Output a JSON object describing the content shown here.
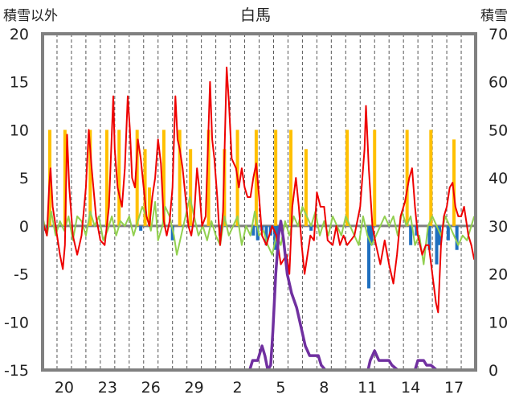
{
  "chart_data": {
    "type": "line",
    "title": "白馬",
    "left_axis_label": "積雪以外",
    "right_axis_label": "積雪",
    "left_ylim": [
      -15,
      20
    ],
    "left_ticks": [
      20,
      15,
      10,
      5,
      0,
      -5,
      -10,
      -15
    ],
    "right_ylim": [
      0,
      70
    ],
    "right_ticks": [
      70,
      60,
      50,
      40,
      30,
      20,
      10,
      0
    ],
    "x_tick_labels": [
      "20",
      "23",
      "26",
      "29",
      "2",
      "5",
      "8",
      "11",
      "14",
      "17"
    ],
    "x_tick_days": [
      1.5,
      4.5,
      7.5,
      10.5,
      13.5,
      16.5,
      19.5,
      22.5,
      25.5,
      28.5
    ],
    "x_range_days": [
      0,
      30
    ],
    "grid": "vertical dashed, one per day",
    "legend": "none",
    "colors": {
      "temperature": "#ee0000",
      "temperature_change": "#92d050",
      "precipitation": "#ffc000",
      "snowfall": "#1f6fbf",
      "snow_depth": "#7030a0",
      "zero_line": "#7f7f7f",
      "frame": "#808080",
      "grid": "#555555"
    },
    "series": [
      {
        "key": "temperature",
        "axis": "left",
        "points": [
          [
            0,
            0.5
          ],
          [
            0.3,
            -1
          ],
          [
            0.45,
            4
          ],
          [
            0.55,
            6
          ],
          [
            0.7,
            2
          ],
          [
            1.0,
            -1
          ],
          [
            1.2,
            -3
          ],
          [
            1.4,
            -4.5
          ],
          [
            1.55,
            -2
          ],
          [
            1.7,
            9.5
          ],
          [
            1.85,
            4
          ],
          [
            2.1,
            -1
          ],
          [
            2.4,
            -3
          ],
          [
            2.7,
            -1
          ],
          [
            3.0,
            4
          ],
          [
            3.2,
            10
          ],
          [
            3.4,
            6
          ],
          [
            3.7,
            1
          ],
          [
            4.0,
            -1.5
          ],
          [
            4.3,
            -2
          ],
          [
            4.6,
            2
          ],
          [
            4.9,
            13.5
          ],
          [
            5.0,
            8
          ],
          [
            5.2,
            4
          ],
          [
            5.5,
            2
          ],
          [
            5.7,
            6
          ],
          [
            5.9,
            13.5
          ],
          [
            6.05,
            10
          ],
          [
            6.2,
            5
          ],
          [
            6.4,
            4
          ],
          [
            6.6,
            9
          ],
          [
            6.8,
            7
          ],
          [
            7.0,
            4
          ],
          [
            7.2,
            1
          ],
          [
            7.4,
            0
          ],
          [
            7.6,
            3
          ],
          [
            7.8,
            5
          ],
          [
            8.0,
            9
          ],
          [
            8.2,
            6.5
          ],
          [
            8.4,
            0.5
          ],
          [
            8.6,
            -1
          ],
          [
            8.8,
            0.5
          ],
          [
            9.0,
            4
          ],
          [
            9.2,
            13.5
          ],
          [
            9.35,
            9
          ],
          [
            9.5,
            8
          ],
          [
            9.7,
            6
          ],
          [
            9.9,
            3
          ],
          [
            10.1,
            0
          ],
          [
            10.3,
            -1
          ],
          [
            10.5,
            1
          ],
          [
            10.7,
            6
          ],
          [
            10.85,
            4
          ],
          [
            11.05,
            0
          ],
          [
            11.3,
            1
          ],
          [
            11.6,
            15
          ],
          [
            11.75,
            9
          ],
          [
            11.9,
            7
          ],
          [
            12.1,
            3
          ],
          [
            12.3,
            -2
          ],
          [
            12.5,
            1.5
          ],
          [
            12.75,
            16.5
          ],
          [
            12.9,
            13
          ],
          [
            13.1,
            7
          ],
          [
            13.4,
            6
          ],
          [
            13.6,
            4
          ],
          [
            13.8,
            6
          ],
          [
            14.0,
            4
          ],
          [
            14.2,
            3
          ],
          [
            14.4,
            3
          ],
          [
            14.6,
            5
          ],
          [
            14.8,
            6.5
          ],
          [
            15.0,
            3
          ],
          [
            15.2,
            -1
          ],
          [
            15.5,
            -2
          ],
          [
            15.9,
            0
          ],
          [
            16.2,
            -1
          ],
          [
            16.5,
            -4
          ],
          [
            16.9,
            -3
          ],
          [
            17.1,
            -5
          ],
          [
            17.3,
            2
          ],
          [
            17.55,
            5
          ],
          [
            17.75,
            2
          ],
          [
            17.95,
            -2
          ],
          [
            18.15,
            -5
          ],
          [
            18.35,
            -3
          ],
          [
            18.55,
            -1
          ],
          [
            18.8,
            -1.5
          ],
          [
            19.0,
            3.5
          ],
          [
            19.25,
            2
          ],
          [
            19.5,
            2
          ],
          [
            19.75,
            -1.5
          ],
          [
            20.1,
            -2
          ],
          [
            20.35,
            0
          ],
          [
            20.6,
            -2
          ],
          [
            20.85,
            -1
          ],
          [
            21.1,
            -2
          ],
          [
            21.6,
            -1
          ],
          [
            22.0,
            2
          ],
          [
            22.3,
            8
          ],
          [
            22.4,
            12.5
          ],
          [
            22.6,
            6
          ],
          [
            22.85,
            0
          ],
          [
            23.1,
            -2
          ],
          [
            23.4,
            -4
          ],
          [
            23.7,
            -1.5
          ],
          [
            24.0,
            -4
          ],
          [
            24.3,
            -6
          ],
          [
            24.55,
            -3
          ],
          [
            24.8,
            1
          ],
          [
            25.1,
            2.5
          ],
          [
            25.4,
            5
          ],
          [
            25.6,
            6
          ],
          [
            25.8,
            2
          ],
          [
            26.0,
            -1
          ],
          [
            26.3,
            -3
          ],
          [
            26.55,
            -2
          ],
          [
            26.75,
            -2
          ],
          [
            27.0,
            -5
          ],
          [
            27.25,
            -8
          ],
          [
            27.4,
            -9
          ],
          [
            27.6,
            -2
          ],
          [
            27.8,
            1
          ],
          [
            28.0,
            2
          ],
          [
            28.2,
            4
          ],
          [
            28.4,
            4.5
          ],
          [
            28.6,
            2
          ],
          [
            28.8,
            1
          ],
          [
            29.0,
            1
          ],
          [
            29.2,
            2
          ],
          [
            29.5,
            -1
          ],
          [
            29.7,
            -2
          ],
          [
            29.9,
            -3.5
          ]
        ]
      },
      {
        "key": "temperature_change",
        "axis": "left",
        "points": [
          [
            0,
            1
          ],
          [
            0.3,
            -1
          ],
          [
            0.6,
            1.5
          ],
          [
            0.9,
            -1
          ],
          [
            1.2,
            0.5
          ],
          [
            1.5,
            -0.5
          ],
          [
            1.8,
            1
          ],
          [
            2.1,
            -1.5
          ],
          [
            2.4,
            1
          ],
          [
            2.7,
            0.5
          ],
          [
            3.0,
            -1
          ],
          [
            3.3,
            1.5
          ],
          [
            3.6,
            0
          ],
          [
            3.9,
            1
          ],
          [
            4.2,
            -1.5
          ],
          [
            4.5,
            -0.5
          ],
          [
            4.8,
            1
          ],
          [
            5.1,
            -1
          ],
          [
            5.4,
            0.5
          ],
          [
            5.7,
            0
          ],
          [
            6.0,
            1
          ],
          [
            6.3,
            -1
          ],
          [
            6.6,
            0.5
          ],
          [
            6.9,
            2
          ],
          [
            7.2,
            1
          ],
          [
            7.5,
            -0.5
          ],
          [
            7.8,
            2.5
          ],
          [
            8.0,
            -1.5
          ],
          [
            8.3,
            0
          ],
          [
            8.5,
            2
          ],
          [
            8.8,
            1
          ],
          [
            9.1,
            -1
          ],
          [
            9.3,
            -3
          ],
          [
            9.6,
            -1
          ],
          [
            9.9,
            1
          ],
          [
            10.2,
            3
          ],
          [
            10.5,
            1
          ],
          [
            10.8,
            -1
          ],
          [
            11.1,
            0
          ],
          [
            11.4,
            -1.5
          ],
          [
            11.7,
            0.5
          ],
          [
            12.0,
            -1
          ],
          [
            12.3,
            -2
          ],
          [
            12.6,
            1
          ],
          [
            12.9,
            -1
          ],
          [
            13.2,
            0
          ],
          [
            13.5,
            1
          ],
          [
            13.8,
            -2
          ],
          [
            14.1,
            0
          ],
          [
            14.4,
            -1
          ],
          [
            14.7,
            1.5
          ],
          [
            15.0,
            -1
          ],
          [
            15.3,
            -0.5
          ],
          [
            15.6,
            -2
          ],
          [
            15.9,
            -3
          ],
          [
            16.2,
            -1
          ],
          [
            16.5,
            -2
          ],
          [
            16.8,
            0.5
          ],
          [
            17.1,
            -1
          ],
          [
            17.4,
            1
          ],
          [
            17.7,
            0
          ],
          [
            18.0,
            2
          ],
          [
            18.3,
            1
          ],
          [
            18.6,
            0
          ],
          [
            18.9,
            1.5
          ],
          [
            19.2,
            -1
          ],
          [
            19.5,
            0.5
          ],
          [
            19.8,
            -1
          ],
          [
            20.1,
            1
          ],
          [
            20.4,
            0
          ],
          [
            20.7,
            -1
          ],
          [
            21.0,
            1
          ],
          [
            21.3,
            0
          ],
          [
            21.6,
            -1
          ],
          [
            21.9,
            -2
          ],
          [
            22.2,
            1
          ],
          [
            22.5,
            -1
          ],
          [
            22.8,
            -2
          ],
          [
            23.1,
            -1
          ],
          [
            23.4,
            0
          ],
          [
            23.7,
            1
          ],
          [
            24.0,
            0
          ],
          [
            24.3,
            1
          ],
          [
            24.6,
            -1
          ],
          [
            24.9,
            1.5
          ],
          [
            25.2,
            0
          ],
          [
            25.5,
            1
          ],
          [
            25.8,
            -2
          ],
          [
            26.1,
            -1
          ],
          [
            26.4,
            -4
          ],
          [
            26.7,
            0
          ],
          [
            27.0,
            1
          ],
          [
            27.3,
            0
          ],
          [
            27.6,
            -1
          ],
          [
            27.9,
            1
          ],
          [
            28.2,
            0
          ],
          [
            28.5,
            -1
          ],
          [
            28.8,
            -2
          ],
          [
            29.1,
            -1
          ],
          [
            29.4,
            -1.5
          ],
          [
            29.7,
            0
          ],
          [
            29.9,
            1
          ]
        ]
      },
      {
        "key": "snow_depth",
        "axis": "right",
        "points": [
          [
            0,
            0
          ],
          [
            14.35,
            0
          ],
          [
            14.55,
            2
          ],
          [
            14.9,
            2
          ],
          [
            15.0,
            3
          ],
          [
            15.2,
            5
          ],
          [
            15.4,
            3
          ],
          [
            15.6,
            0
          ],
          [
            15.8,
            1
          ],
          [
            15.95,
            8
          ],
          [
            16.15,
            20
          ],
          [
            16.35,
            28
          ],
          [
            16.5,
            31
          ],
          [
            16.7,
            27
          ],
          [
            16.95,
            20
          ],
          [
            17.25,
            16
          ],
          [
            17.6,
            13
          ],
          [
            17.9,
            9
          ],
          [
            18.2,
            5
          ],
          [
            18.5,
            3
          ],
          [
            18.8,
            3
          ],
          [
            19.1,
            3
          ],
          [
            19.3,
            1
          ],
          [
            19.6,
            0
          ],
          [
            22.55,
            0
          ],
          [
            22.7,
            2
          ],
          [
            23.0,
            4
          ],
          [
            23.3,
            2
          ],
          [
            24.0,
            2
          ],
          [
            24.2,
            1
          ],
          [
            24.6,
            0
          ],
          [
            25.8,
            0
          ],
          [
            26.0,
            2
          ],
          [
            26.4,
            2
          ],
          [
            26.6,
            1
          ],
          [
            26.9,
            1
          ],
          [
            27.3,
            0
          ],
          [
            30,
            0
          ]
        ]
      }
    ],
    "precipitation_bars": [
      [
        0.5,
        10
      ],
      [
        1.55,
        10
      ],
      [
        3.3,
        10
      ],
      [
        4.45,
        10
      ],
      [
        5.3,
        10
      ],
      [
        6.55,
        10
      ],
      [
        7.1,
        8
      ],
      [
        7.4,
        4
      ],
      [
        8.4,
        10
      ],
      [
        9.5,
        10
      ],
      [
        10.25,
        8
      ],
      [
        11.5,
        10
      ],
      [
        12.6,
        8
      ],
      [
        13.5,
        10
      ],
      [
        14.8,
        10
      ],
      [
        16.15,
        10
      ],
      [
        17.2,
        10
      ],
      [
        18.25,
        8
      ],
      [
        21.1,
        10
      ],
      [
        23.0,
        10
      ],
      [
        25.25,
        10
      ],
      [
        26.9,
        10
      ],
      [
        28.5,
        9
      ]
    ],
    "snowfall_bars": [
      [
        0.2,
        -0.5
      ],
      [
        6.8,
        -0.5
      ],
      [
        9.0,
        -1.5
      ],
      [
        12.3,
        -1
      ],
      [
        14.6,
        -1
      ],
      [
        14.9,
        -1.5
      ],
      [
        15.2,
        -0.5
      ],
      [
        15.5,
        -2
      ],
      [
        15.8,
        -1
      ],
      [
        16.1,
        -2.5
      ],
      [
        16.3,
        -1.5
      ],
      [
        18.6,
        -0.5
      ],
      [
        22.6,
        -6.5
      ],
      [
        22.8,
        -2
      ],
      [
        25.5,
        -2
      ],
      [
        25.9,
        -1
      ],
      [
        26.8,
        -2.5
      ],
      [
        27.3,
        -4
      ],
      [
        27.5,
        -2
      ],
      [
        28.1,
        -1.5
      ],
      [
        28.7,
        -2.5
      ]
    ]
  }
}
